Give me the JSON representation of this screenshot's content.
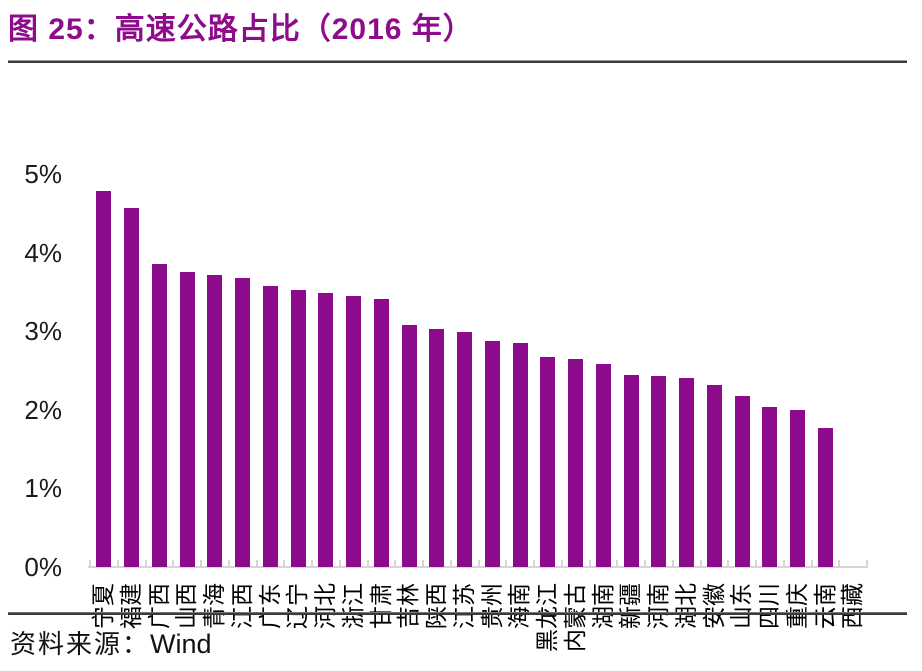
{
  "title": "图 25：高速公路占比（2016 年）",
  "source": {
    "label": "资料来源：",
    "value": "Wind"
  },
  "colors": {
    "accent_purple": "#8C0A8C",
    "title_purple": "#8E0C8C",
    "axis_gray": "#D6D6D6",
    "rule_dark": "#3A3A3A",
    "text_black": "#1A1A1A"
  },
  "chart_data": {
    "type": "bar",
    "title": "高速公路占比（2016 年）",
    "figure_label": "图 25",
    "categories": [
      "宁夏",
      "福建",
      "广西",
      "山西",
      "青海",
      "江西",
      "广东",
      "辽宁",
      "河北",
      "浙江",
      "甘肃",
      "吉林",
      "陕西",
      "江苏",
      "贵州",
      "海南",
      "黑龙江",
      "内蒙古",
      "湖南",
      "新疆",
      "河南",
      "湖北",
      "安徽",
      "山东",
      "四川",
      "重庆",
      "云南",
      "西藏"
    ],
    "values": [
      4.78,
      4.57,
      3.86,
      3.75,
      3.71,
      3.68,
      3.57,
      3.52,
      3.49,
      3.45,
      3.41,
      3.08,
      3.03,
      2.99,
      2.87,
      2.85,
      2.67,
      2.65,
      2.58,
      2.44,
      2.43,
      2.4,
      2.32,
      2.18,
      2.03,
      2.0,
      1.77,
      0
    ],
    "unit": "%",
    "xlabel": "",
    "ylabel": "",
    "ylim": [
      0,
      5
    ],
    "y_ticks": [
      "0%",
      "1%",
      "2%",
      "3%",
      "4%",
      "5%"
    ],
    "x_tick_label_rotation": -90,
    "grid": false,
    "legend_position": "none",
    "bar_color": "#8C0A8C"
  }
}
